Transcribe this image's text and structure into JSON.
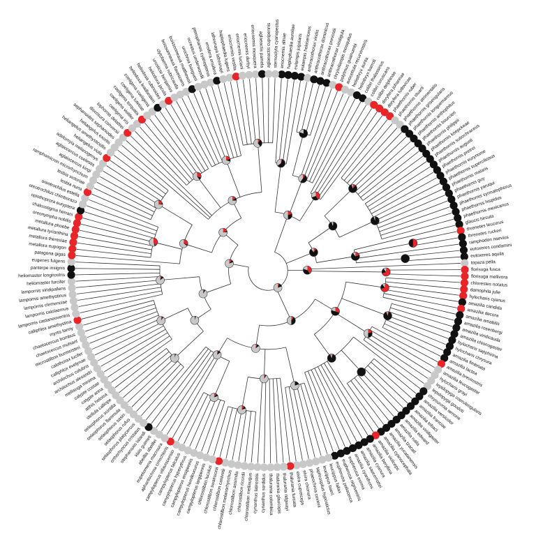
{
  "state_colors": {
    "red": "#e8262a",
    "black": "#111111",
    "gray": "#c8c8c8"
  },
  "pie_states": [
    "red",
    "black",
    "gray"
  ],
  "tips": [
    {
      "label": "eriocnemis alinae",
      "state": "black"
    },
    {
      "label": "haplophaedia aureliae",
      "state": "black"
    },
    {
      "label": "eulampis jugularis",
      "state": "black"
    },
    {
      "label": "eulampis holosericeus",
      "state": "black"
    },
    {
      "label": "anthracothorax viridis",
      "state": "gray"
    },
    {
      "label": "anthracothorax dominicus",
      "state": "black"
    },
    {
      "label": "anthracothorax prevostii",
      "state": "black"
    },
    {
      "label": "anthracothorax viridigula",
      "state": "black"
    },
    {
      "label": "chrysolampis mosquitus",
      "state": "gray"
    },
    {
      "label": "polytmus guainumbi",
      "state": "red"
    },
    {
      "label": "avocettula recurvirostris",
      "state": "gray"
    },
    {
      "label": "heliothryx aurita",
      "state": "gray"
    },
    {
      "label": "heliothryx barroti",
      "state": "black"
    },
    {
      "label": "colibri thalassinus",
      "state": "black"
    },
    {
      "label": "colibri coruscans",
      "state": "gray"
    },
    {
      "label": "colibri delphinae",
      "state": "red"
    },
    {
      "label": "doryfera johannae",
      "state": "red"
    },
    {
      "label": "doryfera ludovicae",
      "state": "red"
    },
    {
      "label": "phaethornis ruber",
      "state": "red"
    },
    {
      "label": "phaethornis stuarti",
      "state": "gray"
    },
    {
      "label": "phaethornis atrimentalis",
      "state": "gray"
    },
    {
      "label": "phaethornis griseogularis",
      "state": "black"
    },
    {
      "label": "phaethornis longuemareus",
      "state": "black"
    },
    {
      "label": "phaethornis anthophilus",
      "state": "black"
    },
    {
      "label": "phaethornis bourcieri",
      "state": "black"
    },
    {
      "label": "phaethornis philippii",
      "state": "black"
    },
    {
      "label": "phaethornis koepckeae",
      "state": "black"
    },
    {
      "label": "phaethornis subochraceus",
      "state": "black"
    },
    {
      "label": "phaethornis augusti",
      "state": "black"
    },
    {
      "label": "phaethornis pretrei",
      "state": "black"
    },
    {
      "label": "phaethornis eurynome",
      "state": "black"
    },
    {
      "label": "phaethornis superciliosus",
      "state": "black"
    },
    {
      "label": "phaethornis malaris",
      "state": "black"
    },
    {
      "label": "phaethornis guy",
      "state": "black"
    },
    {
      "label": "phaethornis yaruqui",
      "state": "black"
    },
    {
      "label": "phaethornis syrmatophorus",
      "state": "black"
    },
    {
      "label": "phaethornis hispidus",
      "state": "black"
    },
    {
      "label": "phaethornis mexicanus",
      "state": "black"
    },
    {
      "label": "glaucis hirsuta",
      "state": "black"
    },
    {
      "label": "threnetes leucurus",
      "state": "red"
    },
    {
      "label": "threnetes ruckeri",
      "state": "black"
    },
    {
      "label": "ramphodon naevius",
      "state": "black"
    },
    {
      "label": "eutoxeres condamini",
      "state": "black"
    },
    {
      "label": "eutoxeres aquila",
      "state": "black"
    },
    {
      "label": "topaza pella",
      "state": "gray"
    },
    {
      "label": "florisuga fusca",
      "state": "red"
    },
    {
      "label": "florisuga mellivora",
      "state": "red"
    },
    {
      "label": "chlorestes notatus",
      "state": "red"
    },
    {
      "label": "damophila julie",
      "state": "red"
    },
    {
      "label": "hylocharis cyanus",
      "state": "red"
    },
    {
      "label": "amazilia candida",
      "state": "black"
    },
    {
      "label": "amazilia decora",
      "state": "red"
    },
    {
      "label": "amazilia amabilis",
      "state": "black"
    },
    {
      "label": "amazilia rosenbergi",
      "state": "black"
    },
    {
      "label": "amazilia viridicauda",
      "state": "black"
    },
    {
      "label": "amazilia chionogaster",
      "state": "black"
    },
    {
      "label": "hylocharis sapphirina",
      "state": "black"
    },
    {
      "label": "hylocharis chrysura",
      "state": "black"
    },
    {
      "label": "amazilia fimbriata",
      "state": "black"
    },
    {
      "label": "amazilia lactea",
      "state": "black"
    },
    {
      "label": "amazilia brevirostris",
      "state": "red"
    },
    {
      "label": "amazilia leucogaster",
      "state": "gray"
    },
    {
      "label": "hylocharis grayi",
      "state": "gray"
    },
    {
      "label": "lepidopyga coeruleogularis",
      "state": "gray"
    },
    {
      "label": "lepidopyga goudoti",
      "state": "gray"
    },
    {
      "label": "chrysuronia oenone",
      "state": "black"
    },
    {
      "label": "amazilia versicolor",
      "state": "black"
    },
    {
      "label": "amazilia franciae",
      "state": "black"
    },
    {
      "label": "amazilia tobaci",
      "state": "black"
    },
    {
      "label": "amazilia viridigaster",
      "state": "black"
    },
    {
      "label": "amazilia edward",
      "state": "black"
    },
    {
      "label": "amazilia rutila",
      "state": "black"
    },
    {
      "label": "amazilia tzacatl",
      "state": "black"
    },
    {
      "label": "amazilia yucatanensis",
      "state": "black"
    },
    {
      "label": "amazilia cyanocephala",
      "state": "black"
    },
    {
      "label": "amazilia violiceps",
      "state": "red"
    },
    {
      "label": "amazilia beryllina",
      "state": "black"
    },
    {
      "label": "amazilia cyanura",
      "state": "black"
    },
    {
      "label": "amazilia saucerrottei",
      "state": "black"
    },
    {
      "label": "amazilia cyanifrons",
      "state": "black"
    },
    {
      "label": "eupherusa eximia",
      "state": "black"
    },
    {
      "label": "eupherusa nigriventris",
      "state": "black"
    },
    {
      "label": "eupherusa poliocerca",
      "state": "black"
    },
    {
      "label": "leucippus fallax",
      "state": "gray"
    },
    {
      "label": "leucippus baeri",
      "state": "gray"
    },
    {
      "label": "taphrospilus hypostictus",
      "state": "gray"
    },
    {
      "label": "phaeochroa cuvierii",
      "state": "gray"
    },
    {
      "label": "elvira chionura",
      "state": "gray"
    },
    {
      "label": "elvira cupreiceps",
      "state": "gray"
    },
    {
      "label": "thalurania furcata",
      "state": "red"
    },
    {
      "label": "thalurania ridgwayi",
      "state": "gray"
    },
    {
      "label": "thalurania glaucopis",
      "state": "gray"
    },
    {
      "label": "thalurania colombica",
      "state": "gray"
    },
    {
      "label": "cynanthus sordidus",
      "state": "gray"
    },
    {
      "label": "cynanthus latirostris",
      "state": "gray"
    },
    {
      "label": "chlorostilbon mellisugus",
      "state": "gray"
    },
    {
      "label": "chlorostilbon ricordii",
      "state": "gray"
    },
    {
      "label": "chlorostilbon assimilis",
      "state": "gray"
    },
    {
      "label": "chlorostilbon melanorhynchus",
      "state": "gray"
    },
    {
      "label": "chlorostilbon canivetii",
      "state": "gray"
    },
    {
      "label": "chlorostilbon swainsonii",
      "state": "red"
    },
    {
      "label": "chlorostilbon lucidus",
      "state": "gray"
    },
    {
      "label": "campylopterus largipennis",
      "state": "gray"
    },
    {
      "label": "campylopterus hemileucurus",
      "state": "gray"
    },
    {
      "label": "campylopterus ensipennis",
      "state": "gray"
    },
    {
      "label": "campylopterus hyperythrus",
      "state": "gray"
    },
    {
      "label": "campylopterus falcatus",
      "state": "gray"
    },
    {
      "label": "campylopterus villaviscensio",
      "state": "gray"
    },
    {
      "label": "aphantochroa cirrochloris",
      "state": "red"
    },
    {
      "label": "eupetomena macroura",
      "state": "gray"
    },
    {
      "label": "abeillia abeillei",
      "state": "gray"
    },
    {
      "label": "klais guimeti",
      "state": "gray"
    },
    {
      "label": "stephanoxis lalandi",
      "state": "black"
    },
    {
      "label": "orthorhyncus cristatus",
      "state": "gray"
    },
    {
      "label": "selasphorus platycercus",
      "state": "gray"
    },
    {
      "label": "selasphorus rufus",
      "state": "gray"
    },
    {
      "label": "selasphorus sasin",
      "state": "gray"
    },
    {
      "label": "selasphorus flammula",
      "state": "gray"
    },
    {
      "label": "selasphorus scintilla",
      "state": "gray"
    },
    {
      "label": "stellula calliope",
      "state": "gray"
    },
    {
      "label": "atthis heloisa",
      "state": "gray"
    },
    {
      "label": "calypte anna",
      "state": "gray"
    },
    {
      "label": "calypte costae",
      "state": "gray"
    },
    {
      "label": "mellisuga minima",
      "state": "gray"
    },
    {
      "label": "archilochus alexandri",
      "state": "gray"
    },
    {
      "label": "archilochus colubris",
      "state": "gray"
    },
    {
      "label": "calliphlox evelynae",
      "state": "gray"
    },
    {
      "label": "calothorax lucifer",
      "state": "gray"
    },
    {
      "label": "microstilbon burmeisteri",
      "state": "gray"
    },
    {
      "label": "chaetocercus mulsant",
      "state": "gray"
    },
    {
      "label": "chaetocercus bombus",
      "state": "gray"
    },
    {
      "label": "myrtis fanny",
      "state": "gray"
    },
    {
      "label": "calliphlox amethystina",
      "state": "red"
    },
    {
      "label": "lampornis castaneoventris",
      "state": "gray"
    },
    {
      "label": "lampornis calolaemus",
      "state": "gray"
    },
    {
      "label": "lampornis clemenciae",
      "state": "gray"
    },
    {
      "label": "lampornis amethystinus",
      "state": "gray"
    },
    {
      "label": "lampornis viridipallens",
      "state": "gray"
    },
    {
      "label": "heliomaster furcifer",
      "state": "gray"
    },
    {
      "label": "heliomaster longirostris",
      "state": "black"
    },
    {
      "label": "panterpe insignis",
      "state": "black"
    },
    {
      "label": "eugenes fulgens",
      "state": "gray"
    },
    {
      "label": "patagona gigas",
      "state": "red"
    },
    {
      "label": "metallura eupogon",
      "state": "red"
    },
    {
      "label": "metallura theresiae",
      "state": "red"
    },
    {
      "label": "metallura tyrianthina",
      "state": "red"
    },
    {
      "label": "metallura phoebe",
      "state": "red"
    },
    {
      "label": "oreonympha nobilis",
      "state": "red"
    },
    {
      "label": "chalcostigma herrani",
      "state": "red"
    },
    {
      "label": "opisthoprora euryptera",
      "state": "black"
    },
    {
      "label": "oreotrochilus chimborazo",
      "state": "gray"
    },
    {
      "label": "oreotrochilus estella",
      "state": "gray"
    },
    {
      "label": "lesbia nuna",
      "state": "red"
    },
    {
      "label": "lesbia victoriae",
      "state": "gray"
    },
    {
      "label": "ramphomicron microrhynchum",
      "state": "gray"
    },
    {
      "label": "aglaiocercus kingi",
      "state": "gray"
    },
    {
      "label": "aglaiocercus coelestis",
      "state": "gray"
    },
    {
      "label": "adelomyia melanogenys",
      "state": "gray"
    },
    {
      "label": "heliangelus viola",
      "state": "red"
    },
    {
      "label": "heliangelus amethysticollis",
      "state": "gray"
    },
    {
      "label": "heliangelus exortis",
      "state": "gray"
    },
    {
      "label": "sephanoides sephaniodes",
      "state": "gray"
    },
    {
      "label": "discosura conversii",
      "state": "gray"
    },
    {
      "label": "lophornis delattrei",
      "state": "red"
    },
    {
      "label": "coeligena iris",
      "state": "gray"
    },
    {
      "label": "coeligena violifer",
      "state": "gray"
    },
    {
      "label": "coeligena torquata",
      "state": "red"
    },
    {
      "label": "coeligena lutetiae",
      "state": "gray"
    },
    {
      "label": "coeligena coeligena",
      "state": "gray"
    },
    {
      "label": "heliodoxa leadbeateri",
      "state": "black"
    },
    {
      "label": "heliodoxa rubinoides",
      "state": "gray"
    },
    {
      "label": "heliodoxa jacula",
      "state": "red"
    },
    {
      "label": "urosticte benjamini",
      "state": "gray"
    },
    {
      "label": "clytolaema rubricauda",
      "state": "gray"
    },
    {
      "label": "boissonneaua flavescens",
      "state": "gray"
    },
    {
      "label": "boissonneaua matthewsii",
      "state": "black"
    },
    {
      "label": "urochroa bougueri",
      "state": "gray"
    },
    {
      "label": "ocreatus underwoodii",
      "state": "gray"
    },
    {
      "label": "pterophanes cyanopterus",
      "state": "gray"
    },
    {
      "label": "ensifera ensifera",
      "state": "black"
    },
    {
      "label": "lafresnaya lafresnayi",
      "state": "gray"
    },
    {
      "label": "haplophaedia lugens",
      "state": "gray"
    },
    {
      "label": "eriocnemis vestita",
      "state": "red"
    },
    {
      "label": "eriocnemis luciani",
      "state": "gray"
    },
    {
      "label": "eriocnemis derbyi",
      "state": "gray"
    },
    {
      "label": "eriocnemis mosquera",
      "state": "gray"
    },
    {
      "label": "aglaeactis pamela",
      "state": "black"
    },
    {
      "label": "aglaeactis cupripennis",
      "state": "gray"
    },
    {
      "label": "sternoclyta cyanopectus",
      "state": "gray"
    }
  ],
  "clades": [
    {
      "tips": [
        0,
        188
      ],
      "depth": 0.1,
      "pie": [
        5,
        15,
        80
      ]
    },
    {
      "tips": [
        0,
        17
      ],
      "depth": 0.3,
      "pie": [
        20,
        30,
        50
      ]
    },
    {
      "tips": [
        0,
        3
      ],
      "depth": 0.55,
      "pie": [
        5,
        60,
        35
      ]
    },
    {
      "tips": [
        4,
        12
      ],
      "depth": 0.5,
      "pie": [
        10,
        50,
        40
      ]
    },
    {
      "tips": [
        4,
        7
      ],
      "depth": 0.72,
      "pie": [
        0,
        80,
        20
      ]
    },
    {
      "tips": [
        13,
        17
      ],
      "depth": 0.45,
      "pie": [
        40,
        30,
        30
      ]
    },
    {
      "tips": [
        18,
        43
      ],
      "depth": 0.25,
      "pie": [
        10,
        80,
        10
      ]
    },
    {
      "tips": [
        18,
        37
      ],
      "depth": 0.4,
      "pie": [
        5,
        90,
        5
      ]
    },
    {
      "tips": [
        18,
        26
      ],
      "depth": 0.6,
      "pie": [
        10,
        85,
        5
      ]
    },
    {
      "tips": [
        27,
        37
      ],
      "depth": 0.6,
      "pie": [
        0,
        95,
        5
      ]
    },
    {
      "tips": [
        38,
        43
      ],
      "depth": 0.45,
      "pie": [
        20,
        70,
        10
      ]
    },
    {
      "tips": [
        39,
        40
      ],
      "depth": 0.75,
      "pie": [
        50,
        50,
        0
      ]
    },
    {
      "tips": [
        42,
        43
      ],
      "depth": 0.7,
      "pie": [
        0,
        100,
        0
      ]
    },
    {
      "tips": [
        44,
        46
      ],
      "depth": 0.2,
      "pie": [
        40,
        40,
        20
      ]
    },
    {
      "tips": [
        45,
        46
      ],
      "depth": 0.6,
      "pie": [
        70,
        20,
        10
      ]
    },
    {
      "tips": [
        47,
        113
      ],
      "depth": 0.28,
      "pie": [
        10,
        40,
        50
      ]
    },
    {
      "tips": [
        47,
        82
      ],
      "depth": 0.4,
      "pie": [
        30,
        50,
        20
      ]
    },
    {
      "tips": [
        47,
        52
      ],
      "depth": 0.6,
      "pie": [
        70,
        20,
        10
      ]
    },
    {
      "tips": [
        53,
        59
      ],
      "depth": 0.65,
      "pie": [
        5,
        90,
        5
      ]
    },
    {
      "tips": [
        60,
        64
      ],
      "depth": 0.6,
      "pie": [
        20,
        30,
        50
      ]
    },
    {
      "tips": [
        65,
        82
      ],
      "depth": 0.55,
      "pie": [
        5,
        90,
        5
      ]
    },
    {
      "tips": [
        66,
        74
      ],
      "depth": 0.7,
      "pie": [
        0,
        100,
        0
      ]
    },
    {
      "tips": [
        83,
        113
      ],
      "depth": 0.4,
      "pie": [
        5,
        10,
        85
      ]
    },
    {
      "tips": [
        83,
        88
      ],
      "depth": 0.6,
      "pie": [
        0,
        20,
        80
      ]
    },
    {
      "tips": [
        89,
        101
      ],
      "depth": 0.55,
      "pie": [
        5,
        5,
        90
      ]
    },
    {
      "tips": [
        95,
        101
      ],
      "depth": 0.72,
      "pie": [
        10,
        10,
        80
      ]
    },
    {
      "tips": [
        102,
        113
      ],
      "depth": 0.5,
      "pie": [
        5,
        10,
        85
      ]
    },
    {
      "tips": [
        102,
        107
      ],
      "depth": 0.7,
      "pie": [
        10,
        10,
        80
      ]
    },
    {
      "tips": [
        114,
        188
      ],
      "depth": 0.2,
      "pie": [
        10,
        10,
        80
      ]
    },
    {
      "tips": [
        114,
        141
      ],
      "depth": 0.35,
      "pie": [
        5,
        5,
        90
      ]
    },
    {
      "tips": [
        114,
        132
      ],
      "depth": 0.45,
      "pie": [
        0,
        5,
        95
      ]
    },
    {
      "tips": [
        114,
        120
      ],
      "depth": 0.65,
      "pie": [
        0,
        5,
        95
      ]
    },
    {
      "tips": [
        121,
        132
      ],
      "depth": 0.6,
      "pie": [
        5,
        5,
        90
      ]
    },
    {
      "tips": [
        133,
        141
      ],
      "depth": 0.55,
      "pie": [
        5,
        10,
        85
      ]
    },
    {
      "tips": [
        142,
        188
      ],
      "depth": 0.3,
      "pie": [
        20,
        5,
        75
      ]
    },
    {
      "tips": [
        142,
        160
      ],
      "depth": 0.45,
      "pie": [
        30,
        5,
        65
      ]
    },
    {
      "tips": [
        143,
        151
      ],
      "depth": 0.6,
      "pie": [
        40,
        5,
        55
      ]
    },
    {
      "tips": [
        152,
        160
      ],
      "depth": 0.65,
      "pie": [
        20,
        5,
        75
      ]
    },
    {
      "tips": [
        161,
        188
      ],
      "depth": 0.4,
      "pie": [
        15,
        10,
        75
      ]
    },
    {
      "tips": [
        164,
        171
      ],
      "depth": 0.6,
      "pie": [
        30,
        10,
        60
      ]
    },
    {
      "tips": [
        172,
        180
      ],
      "depth": 0.6,
      "pie": [
        20,
        10,
        70
      ]
    },
    {
      "tips": [
        181,
        188
      ],
      "depth": 0.65,
      "pie": [
        10,
        30,
        60
      ]
    }
  ]
}
